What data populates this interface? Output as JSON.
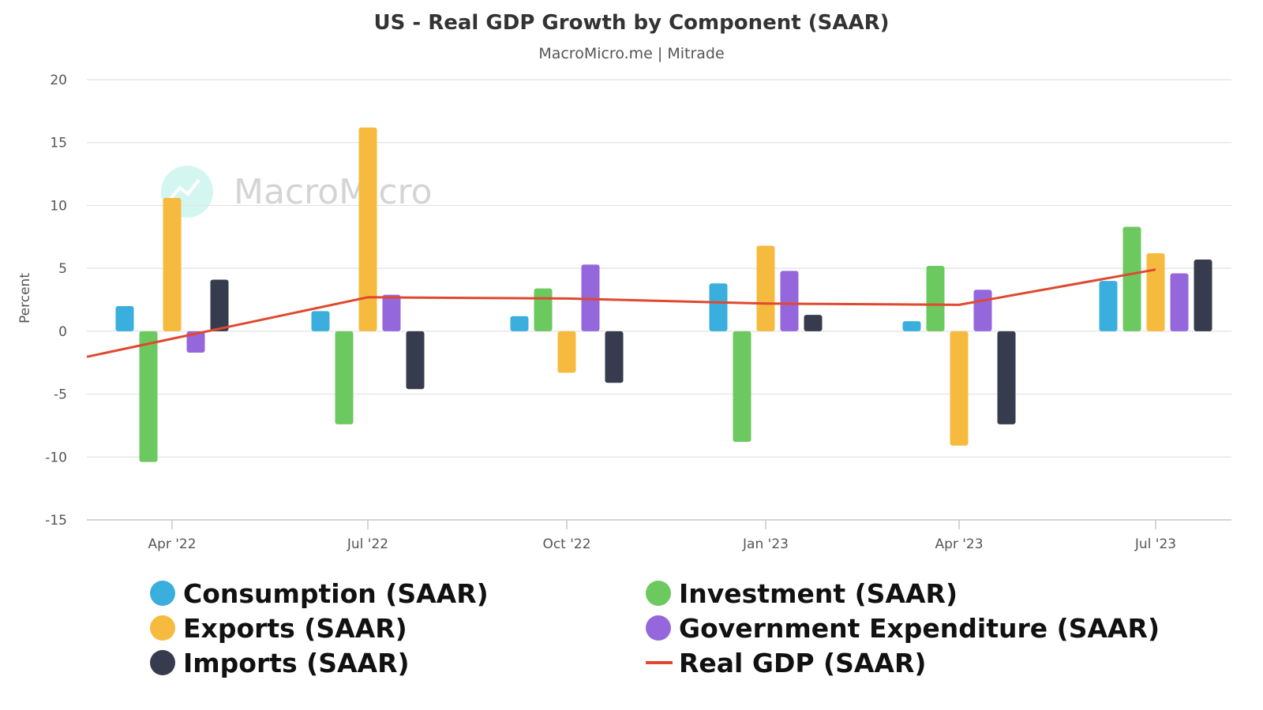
{
  "chart_data": {
    "type": "bar",
    "title": "US - Real GDP Growth by Component (SAAR)",
    "subtitle": "MacroMicro.me | Mitrade",
    "ylabel": "Percent",
    "xlabel": "",
    "ylim": [
      -15,
      20
    ],
    "yticks": [
      20,
      15,
      10,
      5,
      0,
      -5,
      -10,
      -15
    ],
    "grid": true,
    "legend_position": "bottom",
    "watermark": "MacroMicro",
    "categories": [
      "Apr '22",
      "Jul '22",
      "Oct '22",
      "Jan '23",
      "Apr '23",
      "Jul '23"
    ],
    "series": [
      {
        "name": "Consumption (SAAR)",
        "color": "#3aafdd",
        "type": "bar",
        "values": [
          2.0,
          1.6,
          1.2,
          3.8,
          0.8,
          4.0
        ]
      },
      {
        "name": "Investment (SAAR)",
        "color": "#6cc95f",
        "type": "bar",
        "values": [
          -10.4,
          -7.4,
          3.4,
          -8.8,
          5.2,
          8.3
        ]
      },
      {
        "name": "Exports (SAAR)",
        "color": "#f6bb3e",
        "type": "bar",
        "values": [
          10.6,
          16.2,
          -3.3,
          6.8,
          -9.1,
          6.2
        ]
      },
      {
        "name": "Government Expenditure (SAAR)",
        "color": "#9567dd",
        "type": "bar",
        "values": [
          -1.7,
          2.9,
          5.3,
          4.8,
          3.3,
          4.6
        ]
      },
      {
        "name": "Imports (SAAR)",
        "color": "#363b4e",
        "type": "bar",
        "values": [
          4.1,
          -4.6,
          -4.1,
          1.3,
          -7.4,
          5.7
        ]
      },
      {
        "name": "Real GDP (SAAR)",
        "color": "#e0482f",
        "type": "line",
        "values": [
          -0.6,
          2.7,
          2.6,
          2.2,
          2.1,
          4.9
        ]
      }
    ]
  }
}
